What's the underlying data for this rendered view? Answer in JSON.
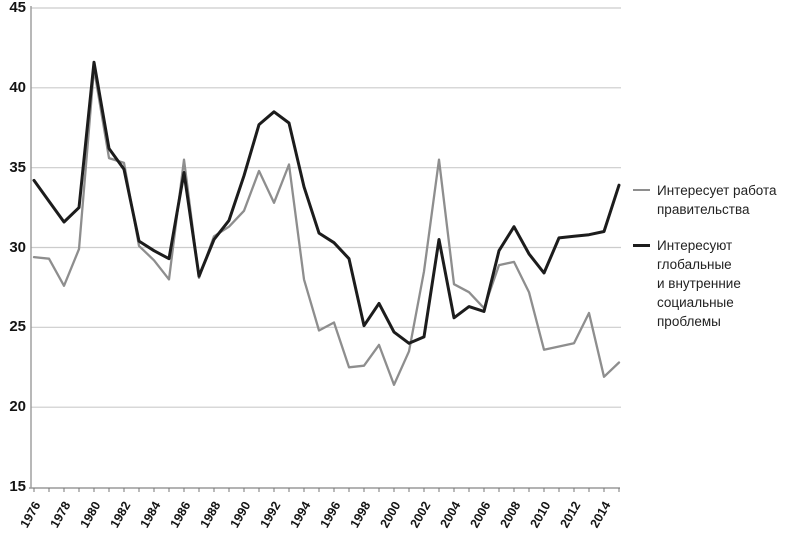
{
  "chart_data": {
    "type": "line",
    "title": "",
    "xlabel": "",
    "ylabel": "",
    "x": [
      1976,
      1977,
      1978,
      1979,
      1980,
      1981,
      1982,
      1983,
      1984,
      1985,
      1986,
      1987,
      1988,
      1989,
      1990,
      1991,
      1992,
      1993,
      1994,
      1995,
      1996,
      1997,
      1998,
      1999,
      2000,
      2001,
      2002,
      2003,
      2004,
      2005,
      2006,
      2007,
      2008,
      2009,
      2010,
      2011,
      2012,
      2013,
      2014,
      2015
    ],
    "xtick_labels": [
      "1976",
      "1978",
      "1980",
      "1982",
      "1984",
      "1986",
      "1988",
      "1990",
      "1992",
      "1994",
      "1996",
      "1998",
      "2000",
      "2002",
      "2004",
      "2006",
      "2008",
      "2010",
      "2012",
      "2014"
    ],
    "ytick_values": [
      15,
      20,
      25,
      30,
      35,
      40,
      45
    ],
    "ytick_labels": [
      "15",
      "20",
      "25",
      "30",
      "35",
      "40",
      "45"
    ],
    "ylim": [
      15,
      45
    ],
    "grid": "horizontal",
    "legend_position": "right",
    "series": [
      {
        "name": "Интересует работа правительства",
        "label_lines": [
          "Интересует работа",
          "правительства"
        ],
        "color": "#8e8e8e",
        "width": 2.3,
        "values": [
          29.4,
          29.3,
          27.6,
          29.9,
          41.2,
          35.6,
          35.3,
          30.1,
          29.2,
          28.0,
          35.5,
          28.1,
          30.7,
          31.3,
          32.3,
          34.8,
          32.8,
          35.2,
          28.0,
          24.8,
          25.3,
          22.5,
          22.6,
          23.9,
          21.4,
          23.5,
          28.5,
          35.5,
          27.7,
          27.2,
          26.2,
          28.9,
          29.1,
          27.2,
          23.6,
          23.8,
          24.0,
          25.9,
          21.9,
          22.8
        ]
      },
      {
        "name": "Интересуют глобальные и внутренние социальные проблемы",
        "label_lines": [
          "Интересуют",
          "глобальные",
          "и внутренние",
          "социальные",
          "проблемы"
        ],
        "color": "#1c1c1c",
        "width": 3,
        "values": [
          34.2,
          32.9,
          31.6,
          32.5,
          41.6,
          36.2,
          34.9,
          30.4,
          29.8,
          29.3,
          34.7,
          28.2,
          30.5,
          31.7,
          34.5,
          37.7,
          38.5,
          37.8,
          33.8,
          30.9,
          30.3,
          29.3,
          25.1,
          26.5,
          24.7,
          24.0,
          24.4,
          30.5,
          25.6,
          26.3,
          26.0,
          29.8,
          31.3,
          29.6,
          28.4,
          30.6,
          30.7,
          30.8,
          31.0,
          33.9
        ]
      }
    ],
    "axis_color": "#9a9a9a",
    "grid_color": "#cccccc",
    "tick_color": "#777777"
  }
}
